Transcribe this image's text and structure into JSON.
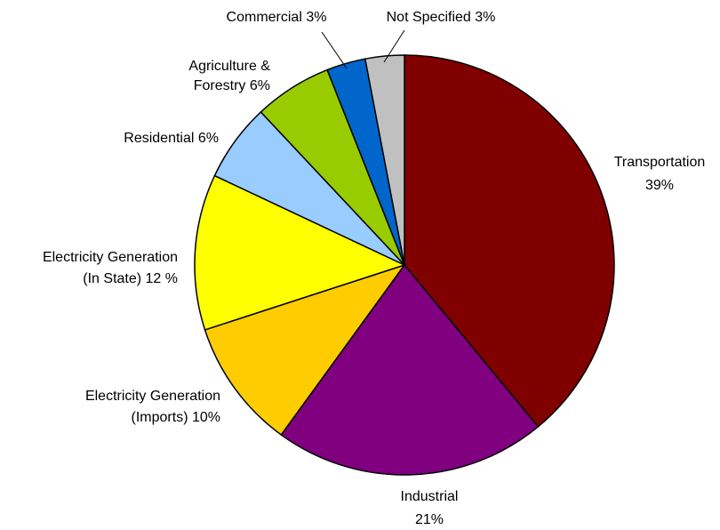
{
  "chart_data": {
    "type": "pie",
    "title": "",
    "slices": [
      {
        "name": "Transportation",
        "value": 39,
        "color": "#800000",
        "label_lines": [
          "Transportation",
          "39%"
        ]
      },
      {
        "name": "Industrial",
        "value": 21,
        "color": "#800080",
        "label_lines": [
          "Industrial",
          "21%"
        ]
      },
      {
        "name": "Electricity Generation (Imports)",
        "value": 10,
        "color": "#ffcc00",
        "label_lines": [
          "Electricity Generation",
          "(Imports) 10%"
        ]
      },
      {
        "name": "Electricity Generation (In State)",
        "value": 12,
        "color": "#ffff00",
        "label_lines": [
          "Electricity Generation",
          "(In State) 12 %"
        ]
      },
      {
        "name": "Residential",
        "value": 6,
        "color": "#99ccff",
        "label_lines": [
          "Residential 6%"
        ]
      },
      {
        "name": "Agriculture & Forestry",
        "value": 6,
        "color": "#99cc00",
        "label_lines": [
          "Agriculture &",
          "Forestry 6%"
        ]
      },
      {
        "name": "Commercial",
        "value": 3,
        "color": "#0066cc",
        "label_lines": [
          "Commercial 3%"
        ]
      },
      {
        "name": "Not Specified",
        "value": 3,
        "color": "#c0c0c0",
        "label_lines": [
          "Not Specified 3%"
        ]
      }
    ],
    "legend": "none"
  }
}
